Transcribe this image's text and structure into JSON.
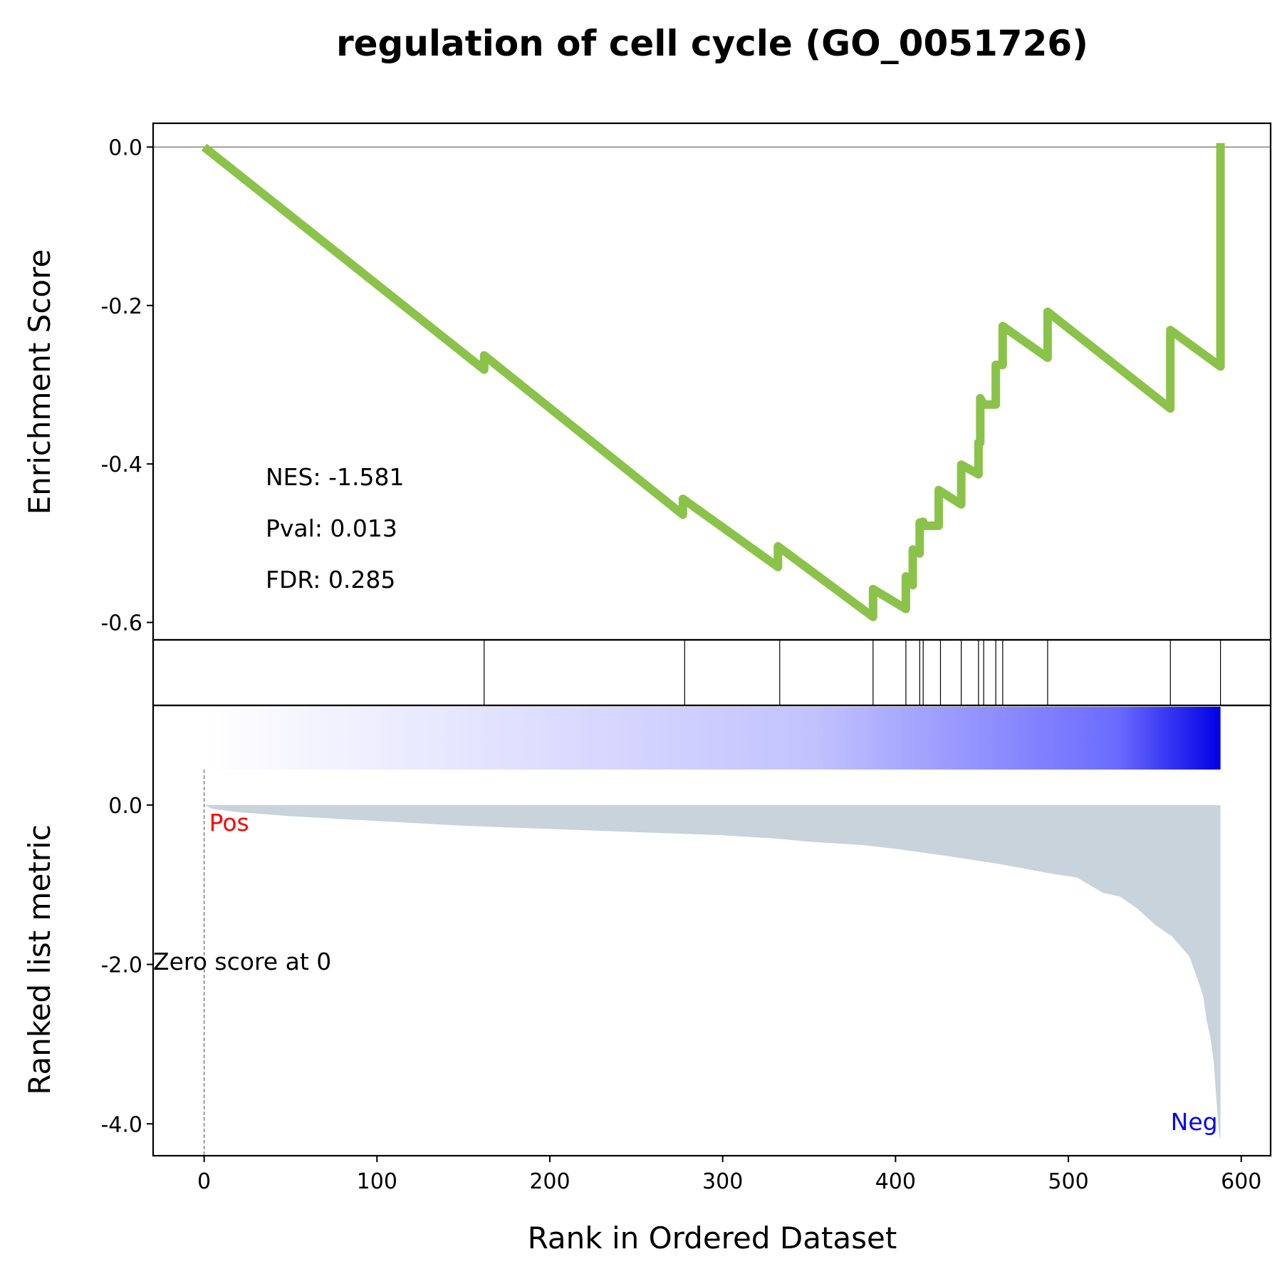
{
  "chart_data": {
    "type": "line",
    "title": "regulation of cell cycle (GO_0051726)",
    "xlabel": "Rank in Ordered Dataset",
    "xlim": [
      -29.5,
      617
    ],
    "xticks": [
      "0",
      "100",
      "200",
      "300",
      "400",
      "500",
      "600"
    ],
    "xtick_values": [
      0,
      100,
      200,
      300,
      400,
      500,
      600
    ],
    "es_panel": {
      "ylabel": "Enrichment Score",
      "ylim": [
        -0.622,
        0.03
      ],
      "yticks": [
        "0.0",
        "-0.2",
        "-0.4",
        "-0.6"
      ],
      "ytick_values": [
        0,
        -0.2,
        -0.4,
        -0.6
      ],
      "line_color": "#8bc34a",
      "zero_line": true,
      "stats": {
        "nes": "NES: -1.581",
        "pval": "Pval: 0.013",
        "fdr": "FDR: 0.285"
      },
      "es_curve": {
        "x": [
          0,
          162,
          162,
          277,
          277,
          332,
          332,
          387,
          387,
          406,
          406,
          410,
          410,
          414,
          414,
          416,
          416,
          425,
          425,
          438,
          438,
          448,
          448,
          449,
          449,
          451,
          451,
          458,
          458,
          459,
          459,
          462,
          462,
          488,
          488,
          559,
          559,
          588,
          588
        ],
        "y": [
          0,
          -0.281,
          -0.263,
          -0.464,
          -0.444,
          -0.53,
          -0.504,
          -0.593,
          -0.558,
          -0.583,
          -0.542,
          -0.553,
          -0.508,
          -0.513,
          -0.474,
          -0.473,
          -0.478,
          -0.478,
          -0.433,
          -0.451,
          -0.401,
          -0.413,
          -0.373,
          -0.373,
          -0.317,
          -0.325,
          -0.325,
          -0.325,
          -0.275,
          -0.275,
          -0.275,
          -0.275,
          -0.226,
          -0.266,
          -0.208,
          -0.33,
          -0.231,
          -0.277,
          0.005
        ]
      }
    },
    "hits_panel": {
      "hit_positions": [
        162,
        278,
        333,
        387,
        406,
        414,
        416,
        426,
        438,
        448,
        451,
        458,
        462,
        488,
        559,
        588
      ]
    },
    "color_strip": {
      "x_range": [
        0,
        588
      ],
      "gradient_from": "#ffffff",
      "gradient_to": "#0000e6"
    },
    "metric_panel": {
      "ylabel": "Ranked list metric",
      "ylim": [
        -4.4,
        1.25
      ],
      "yticks": [
        "0.0",
        "-2.0",
        "-4.0"
      ],
      "ytick_values": [
        0,
        -2,
        -4
      ],
      "fill_color": "#c8d3dc",
      "pos_label": "Pos",
      "pos_color": "#ff0000",
      "neg_label": "Neg",
      "neg_color": "#0000ff",
      "zero_label": "Zero score at 0",
      "zero_cross_x": 0,
      "metric_curve": {
        "x": [
          0,
          5,
          20,
          50,
          100,
          150,
          200,
          250,
          300,
          330,
          350,
          380,
          400,
          430,
          460,
          490,
          505,
          520,
          530,
          540,
          550,
          560,
          570,
          575,
          578,
          580,
          582,
          584,
          585,
          586,
          587,
          588
        ],
        "y": [
          0,
          -0.05,
          -0.09,
          -0.14,
          -0.2,
          -0.26,
          -0.3,
          -0.34,
          -0.38,
          -0.42,
          -0.46,
          -0.5,
          -0.55,
          -0.64,
          -0.74,
          -0.86,
          -0.91,
          -1.1,
          -1.15,
          -1.3,
          -1.5,
          -1.65,
          -1.9,
          -2.2,
          -2.4,
          -2.7,
          -2.9,
          -3.2,
          -3.5,
          -3.8,
          -4.1,
          -4.2
        ]
      }
    }
  }
}
